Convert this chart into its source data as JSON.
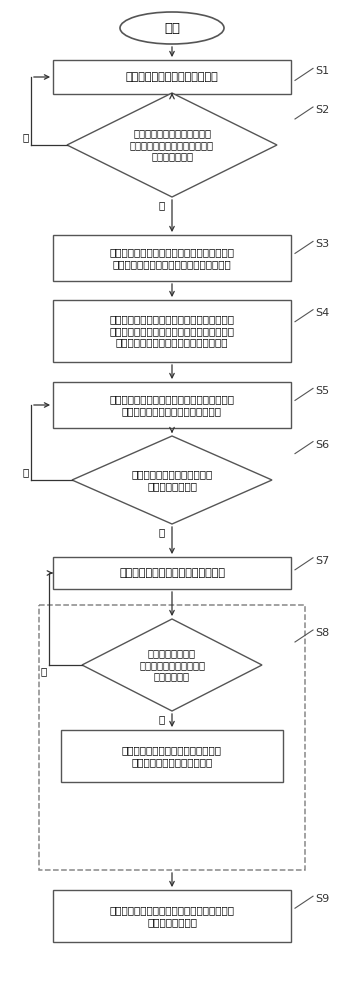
{
  "bg_color": "#ffffff",
  "border_color": "#555555",
  "text_color": "#000000",
  "arrow_color": "#333333",
  "start_label": "开始",
  "s1": "终端设备从环境中收集状态信息",
  "s2": "判断当前时刻状态信息和上一\n时刻状态信息变化差值是否超过\n预设差值门限值",
  "s3": "根据当前状态信息对主网络中的行动者网络信\n道传输的频谱、子信道和传输功率进行决策",
  "s4": "收集下一时刻状态信息和奖励信息，并将当前\n时刻状态信息、当前时刻动作、下一时刻状态\n信息和奖励信息组成经验元组放入记忆池",
  "s5": "利用记忆池中的经验元组采用梯度下降法训练\n主网络中的行动者网络和评论家网络",
  "s6": "判断终端设备累计梯度是否达\n到预设梯度门限值",
  "s7": "终端设备将其主网络参数上传至基站",
  "s8d": "基站判断其收集的\n主网络参数量是否达到预\n设收集门限值",
  "s8r": "根据设定权重将所有的主网络参数进\n行聚合并广播给所有终端设备",
  "s9": "终端设备根据接收到的聚合参数更新其主网络\n和目标网络的参数",
  "yes": "是",
  "no": "否"
}
